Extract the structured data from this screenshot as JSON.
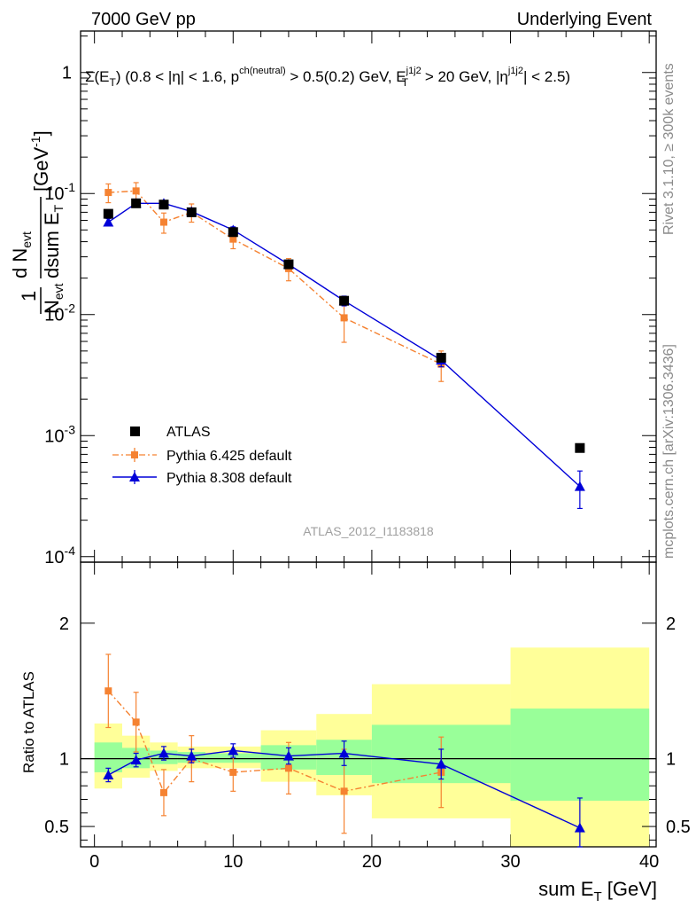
{
  "header": {
    "left": "7000 GeV pp",
    "right": "Underlying Event"
  },
  "side_labels": {
    "rivet": "Rivet 3.1.10, ≥ 300k events",
    "mcplots": "mcplots.cern.ch [arXiv:1306.3436]"
  },
  "analysis_id": "ATLAS_2012_I1183818",
  "colors": {
    "atlas": "#000000",
    "pythia6": "#f58231",
    "pythia8": "#0000d8",
    "band_inner": "#99ff99",
    "band_outer": "#ffff99"
  },
  "chart_data": [
    {
      "type": "scatter",
      "panel": "main",
      "title": "Σ(E_T) (0.8 < |η| < 1.6, p^ch(neutral) > 0.5(0.2) GeV, E_T^j1j2 > 20 GeV, |η^j1j2| < 2.5)",
      "ylabel": "1/N_evt dN_evt/dsum E_T [GeV^-1]",
      "yscale": "log",
      "xlim": [
        -1,
        40.5
      ],
      "ylim": [
        9e-05,
        2.2
      ],
      "ytick_labels": [
        "1",
        "10^-1",
        "10^-2",
        "10^-3",
        "10^-4"
      ],
      "legend_position": "bottom-left",
      "series": [
        {
          "name": "ATLAS",
          "marker": "square",
          "x": [
            1,
            3,
            5,
            7,
            10,
            14,
            18,
            25,
            35
          ],
          "y": [
            0.068,
            0.083,
            0.081,
            0.07,
            0.048,
            0.026,
            0.013,
            0.0044,
            0.00079
          ],
          "yerr": [
            0,
            0,
            0,
            0,
            0,
            0,
            0,
            0,
            0
          ]
        },
        {
          "name": "Pythia 6.425 default",
          "marker": "square-small",
          "line": "dash-dot",
          "x": [
            1,
            3,
            5,
            7,
            10,
            14,
            18,
            25
          ],
          "y": [
            0.102,
            0.105,
            0.058,
            0.07,
            0.042,
            0.024,
            0.0094,
            0.0039
          ],
          "yerr": [
            0.018,
            0.018,
            0.011,
            0.012,
            0.007,
            0.005,
            0.0035,
            0.0011
          ]
        },
        {
          "name": "Pythia 8.308 default",
          "marker": "triangle",
          "line": "solid",
          "x": [
            1,
            3,
            5,
            7,
            10,
            14,
            18,
            25,
            35
          ],
          "y": [
            0.058,
            0.083,
            0.083,
            0.071,
            0.05,
            0.026,
            0.013,
            0.0042,
            0.00038
          ],
          "yerr": [
            0.004,
            0.004,
            0.004,
            0.004,
            0.003,
            0.002,
            0.0012,
            0.0005,
            0.00013
          ]
        }
      ]
    },
    {
      "type": "scatter",
      "panel": "ratio",
      "ylabel": "Ratio to ATLAS",
      "xlabel": "sum E_T [GeV]",
      "xlim": [
        -1,
        40.5
      ],
      "ylim": [
        0.35,
        2.45
      ],
      "xticks": [
        0,
        10,
        20,
        30,
        40
      ],
      "xtick_labels": [
        "0",
        "10",
        "20",
        "30",
        "40"
      ],
      "yticks": [
        0.5,
        1,
        2
      ],
      "ytick_labels": [
        "0.5",
        "1",
        "2"
      ],
      "bands": {
        "edges": [
          0,
          2,
          4,
          6,
          8,
          12,
          16,
          20,
          30,
          40
        ],
        "inner_low": [
          0.9,
          0.93,
          0.96,
          0.97,
          0.97,
          0.92,
          0.88,
          0.82,
          0.69
        ],
        "inner_high": [
          1.12,
          1.08,
          1.06,
          1.05,
          1.04,
          1.1,
          1.14,
          1.25,
          1.37
        ],
        "outer_low": [
          0.78,
          0.86,
          0.91,
          0.93,
          0.93,
          0.83,
          0.73,
          0.56,
          0.34
        ],
        "outer_high": [
          1.26,
          1.17,
          1.12,
          1.09,
          1.09,
          1.21,
          1.33,
          1.55,
          1.82
        ]
      },
      "series": [
        {
          "name": "Pythia 6.425 default",
          "x": [
            1,
            3,
            5,
            7,
            10,
            14,
            18,
            25
          ],
          "y": [
            1.5,
            1.27,
            0.75,
            1.0,
            0.9,
            0.93,
            0.76,
            0.9
          ],
          "yerr": [
            0.27,
            0.22,
            0.17,
            0.17,
            0.14,
            0.19,
            0.31,
            0.26
          ]
        },
        {
          "name": "Pythia 8.308 default",
          "x": [
            1,
            3,
            5,
            7,
            10,
            14,
            18,
            25,
            35
          ],
          "y": [
            0.88,
            0.99,
            1.04,
            1.02,
            1.06,
            1.02,
            1.04,
            0.96,
            0.49
          ],
          "yerr": [
            0.05,
            0.05,
            0.05,
            0.05,
            0.05,
            0.06,
            0.09,
            0.11,
            0.22
          ]
        }
      ]
    }
  ]
}
